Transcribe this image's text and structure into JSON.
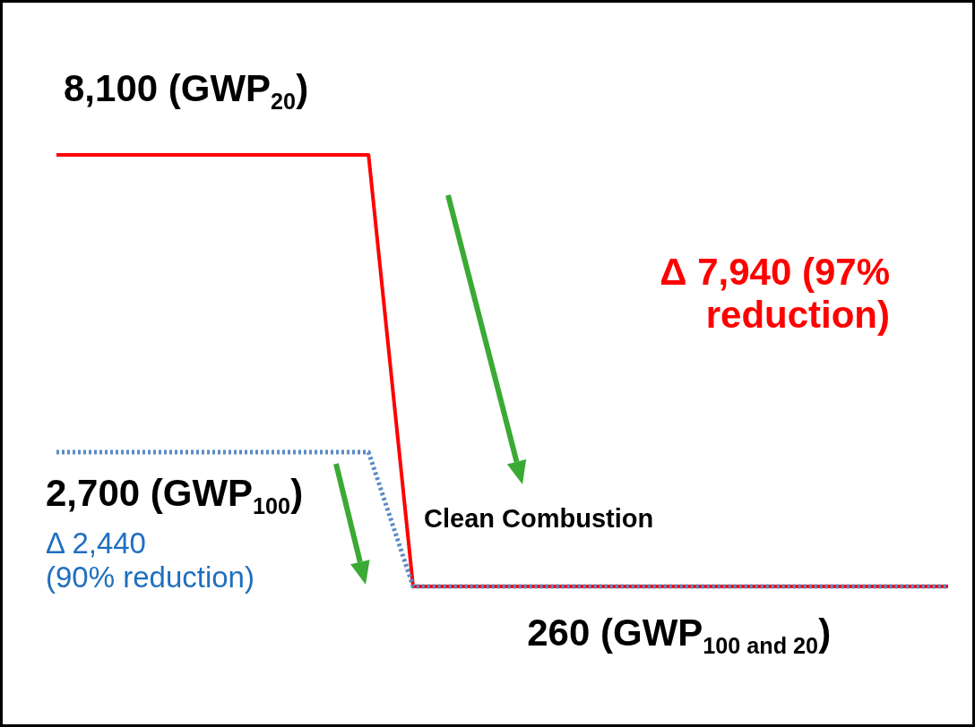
{
  "chart_data": {
    "type": "line",
    "tick_labels": false,
    "categories": [
      null,
      null,
      null,
      null,
      null,
      null,
      null,
      null,
      null,
      null,
      null,
      null,
      null,
      null,
      null,
      null,
      null,
      null,
      null,
      null,
      null
    ],
    "series": [
      {
        "color": "#ff0000",
        "line_style": "solid",
        "values": [
          8100,
          8100,
          8100,
          8100,
          8100,
          8100,
          8100,
          8100,
          260,
          260,
          260,
          260,
          260,
          260,
          260,
          260,
          260,
          260,
          260,
          260,
          260
        ],
        "value_labels": [
          "8,100 (GWP$_{20}$)",
          null,
          null,
          null,
          null,
          null,
          null,
          null,
          null,
          null,
          null,
          "260 (GWP$_{100 and 20}$)",
          null,
          null,
          null,
          null,
          null,
          null,
          null,
          null,
          null
        ]
      },
      {
        "color": "#5b8ac6",
        "line_style": "dotted",
        "values": [
          2700,
          2700,
          2700,
          2700,
          2700,
          2700,
          2700,
          2700,
          260,
          260,
          260,
          260,
          260,
          260,
          260,
          260,
          260,
          260,
          260,
          260,
          260
        ],
        "value_labels": [
          "2,700 (GWP$_{100}$)",
          null,
          null,
          null,
          null,
          null,
          null,
          null,
          null,
          null,
          null,
          null,
          null,
          null,
          null,
          null,
          null,
          null,
          null,
          null,
          null
        ]
      }
    ],
    "annotations": [
      "Δ 2,440\n(90% reduction)",
      "Δ 7,940 (97%\nreduction)",
      "Clean Combustion"
    ]
  }
}
